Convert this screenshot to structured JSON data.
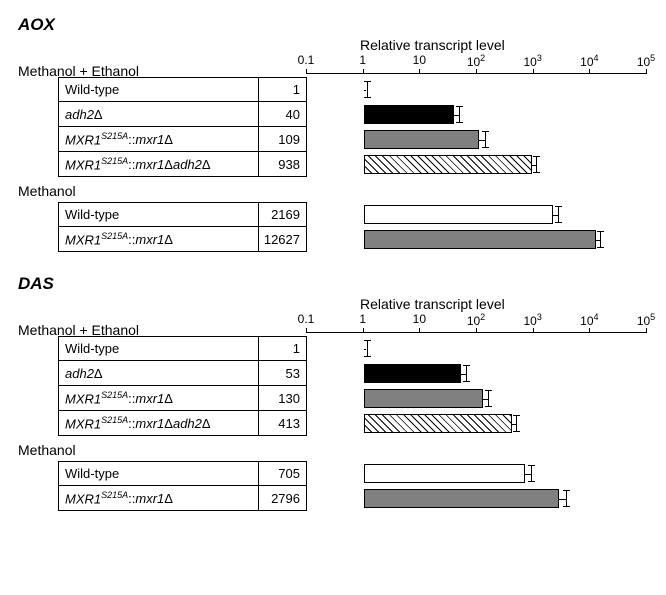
{
  "axis": {
    "title": "Relative transcript level",
    "ticks": [
      {
        "label": "0.1",
        "exp": -1
      },
      {
        "label": "1",
        "exp": 0
      },
      {
        "label": "10",
        "exp": 1
      },
      {
        "label": "10²",
        "exp": 2,
        "html": "10<sup style=\"font-style:normal\">2</sup>"
      },
      {
        "label": "10³",
        "exp": 3,
        "html": "10<sup style=\"font-style:normal\">3</sup>"
      },
      {
        "label": "10⁴",
        "exp": 4,
        "html": "10<sup style=\"font-style:normal\">4</sup>"
      },
      {
        "label": "10⁵",
        "exp": 5,
        "html": "10<sup style=\"font-style:normal\">5</sup>"
      }
    ],
    "min_exp": -1,
    "max_exp": 5
  },
  "styles": {
    "fills": {
      "none": "transparent",
      "black": "#000000",
      "gray": "#808080",
      "hatched": "hatched"
    },
    "bar_border": "#000000",
    "background": "#ffffff"
  },
  "panels": [
    {
      "gene": "AOX",
      "groups": [
        {
          "condition": "Methanol + Ethanol",
          "show_axis": true,
          "rows": [
            {
              "label_html": "Wild-type",
              "value": 1,
              "fill": "none",
              "err_log": 0.05
            },
            {
              "label_html": "<span class=\"italic\">adh2</span>Δ",
              "value": 40,
              "fill": "black",
              "err_log": 0.08
            },
            {
              "label_html": "<span class=\"italic\">MXR1<sup>S215A</sup></span> ::<span class=\"italic\">mxr1</span>Δ",
              "value": 109,
              "fill": "gray",
              "err_log": 0.1
            },
            {
              "label_html": "<span class=\"italic\">MXR1<sup>S215A</sup></span> ::<span class=\"italic\">mxr1</span>Δ<span class=\"italic\">adh2</span>Δ",
              "value": 938,
              "fill": "hatched",
              "err_log": 0.07
            }
          ]
        },
        {
          "condition": "Methanol",
          "show_axis": false,
          "rows": [
            {
              "label_html": "Wild-type",
              "value": 2169,
              "fill": "none",
              "err_log": 0.1
            },
            {
              "label_html": "<span class=\"italic\">MXR1<sup>S215A</sup></span> ::<span class=\"italic\">mxr1</span>Δ",
              "value": 12627,
              "fill": "gray",
              "err_log": 0.07
            }
          ]
        }
      ]
    },
    {
      "gene": "DAS",
      "groups": [
        {
          "condition": "Methanol + Ethanol",
          "show_axis": true,
          "rows": [
            {
              "label_html": "Wild-type",
              "value": 1,
              "fill": "none",
              "err_log": 0.05
            },
            {
              "label_html": "<span class=\"italic\">adh2</span>Δ",
              "value": 53,
              "fill": "black",
              "err_log": 0.08
            },
            {
              "label_html": "<span class=\"italic\">MXR1<sup>S215A</sup></span> ::<span class=\"italic\">mxr1</span>Δ",
              "value": 130,
              "fill": "gray",
              "err_log": 0.08
            },
            {
              "label_html": "<span class=\"italic\">MXR1<sup>S215A</sup></span> ::<span class=\"italic\">mxr1</span>Δ <span class=\"italic\">adh2</span>Δ",
              "value": 413,
              "fill": "hatched",
              "err_log": 0.07
            }
          ]
        },
        {
          "condition": "Methanol",
          "show_axis": false,
          "rows": [
            {
              "label_html": "Wild-type",
              "value": 705,
              "fill": "none",
              "err_log": 0.1
            },
            {
              "label_html": "<span class=\"italic\">MXR1<sup>S215A</sup></span> ::<span class=\"italic\">mxr1</span>Δ",
              "value": 2796,
              "fill": "gray",
              "err_log": 0.12
            }
          ]
        }
      ]
    }
  ]
}
